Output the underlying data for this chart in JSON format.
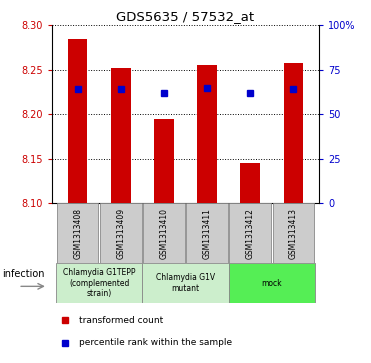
{
  "title": "GDS5635 / 57532_at",
  "samples": [
    "GSM1313408",
    "GSM1313409",
    "GSM1313410",
    "GSM1313411",
    "GSM1313412",
    "GSM1313413"
  ],
  "bar_values": [
    8.285,
    8.252,
    8.195,
    8.255,
    8.145,
    8.258
  ],
  "bar_bottom": 8.1,
  "percentile_values": [
    8.228,
    8.228,
    8.224,
    8.23,
    8.224,
    8.228
  ],
  "ylim": [
    8.1,
    8.3
  ],
  "yticks_left": [
    8.1,
    8.15,
    8.2,
    8.25,
    8.3
  ],
  "yticks_right_vals": [
    0,
    25,
    50,
    75,
    100
  ],
  "bar_color": "#cc0000",
  "percentile_color": "#0000cc",
  "infection_label": "infection",
  "legend_bar_label": "transformed count",
  "legend_point_label": "percentile rank within the sample",
  "left_color": "#cc0000",
  "right_color": "#0000cc",
  "group_info": [
    {
      "span": [
        0,
        2
      ],
      "label": "Chlamydia G1TEPP\n(complemented\nstrain)",
      "color": "#cceecc"
    },
    {
      "span": [
        2,
        4
      ],
      "label": "Chlamydia G1V\nmutant",
      "color": "#cceecc"
    },
    {
      "span": [
        4,
        6
      ],
      "label": "mock",
      "color": "#55ee55"
    }
  ]
}
